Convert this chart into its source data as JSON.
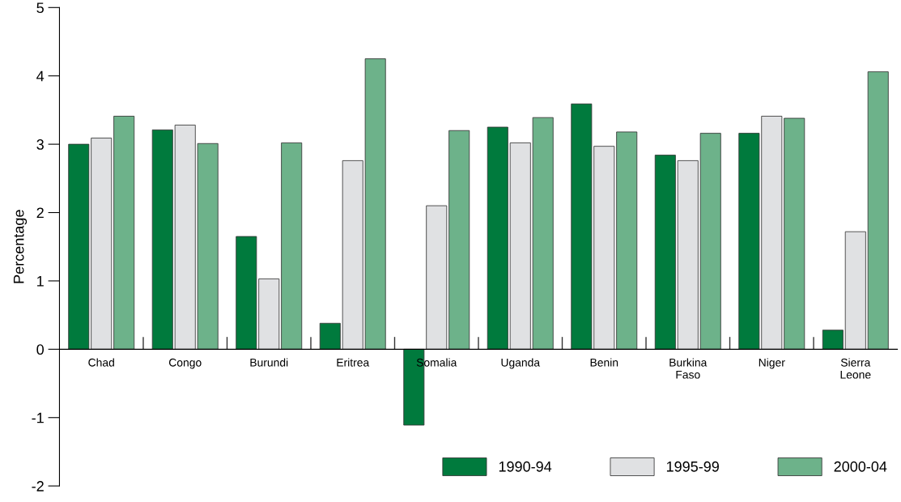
{
  "chart_data": {
    "type": "bar",
    "ylabel": "Percentage",
    "categories": [
      "Chad",
      "Congo",
      "Burundi",
      "Eritrea",
      "Somalia",
      "Uganda",
      "Benin",
      "Burkina\nFaso",
      "Niger",
      "Sierra\nLeone"
    ],
    "series": [
      {
        "name": "1990-94",
        "color": "#007a3d",
        "values": [
          3.0,
          3.21,
          1.65,
          0.38,
          -1.11,
          3.25,
          3.59,
          2.84,
          3.16,
          0.28
        ]
      },
      {
        "name": "1995-99",
        "color": "#e0e1e3",
        "values": [
          3.09,
          3.28,
          1.03,
          2.76,
          2.1,
          3.02,
          2.97,
          2.76,
          3.41,
          1.72
        ]
      },
      {
        "name": "2000-04",
        "color": "#6db28a",
        "values": [
          3.41,
          3.01,
          3.02,
          4.25,
          3.2,
          3.39,
          3.18,
          3.16,
          3.38,
          4.06
        ]
      }
    ],
    "ylim": [
      -2,
      5
    ],
    "yticks": [
      -2,
      -1,
      0,
      1,
      2,
      3,
      4,
      5
    ],
    "grid": false,
    "legend": "bottom right"
  }
}
